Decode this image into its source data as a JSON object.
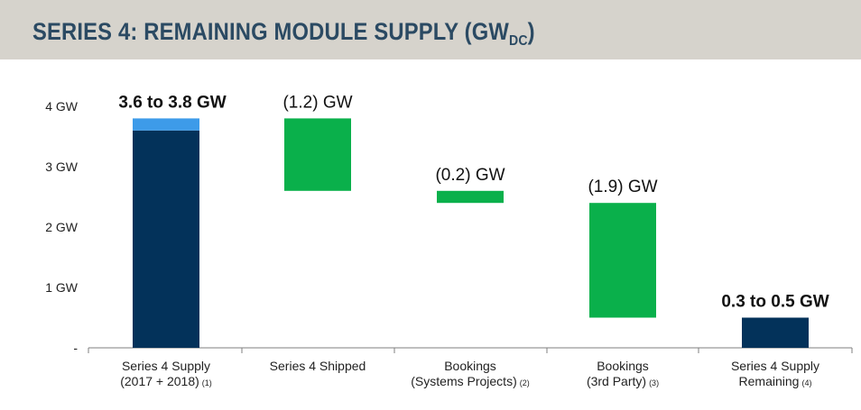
{
  "header": {
    "title_main": "SERIES 4: REMAINING MODULE SUPPLY (GW",
    "title_sub": "DC",
    "title_end": ")"
  },
  "colors": {
    "header_bg": "#d6d3cc",
    "title": "#2b4a63",
    "navy": "#03325a",
    "light_blue": "#3d9be9",
    "green": "#0ab04b"
  },
  "chart_data": {
    "type": "bar",
    "subtype": "waterfall",
    "title": "SERIES 4: REMAINING MODULE SUPPLY (GWDC)",
    "xlabel": "",
    "ylabel": "",
    "ylim": [
      0,
      4
    ],
    "y_ticks": [
      {
        "value": 0,
        "label": "-"
      },
      {
        "value": 1,
        "label": "1 GW"
      },
      {
        "value": 2,
        "label": "2 GW"
      },
      {
        "value": 3,
        "label": "3 GW"
      },
      {
        "value": 4,
        "label": "4 GW"
      }
    ],
    "grid": false,
    "categories": [
      {
        "lines": [
          "Series 4 Supply",
          "(2017 + 2018)"
        ],
        "note": "(1)"
      },
      {
        "lines": [
          "Series 4 Shipped"
        ],
        "note": ""
      },
      {
        "lines": [
          "Bookings",
          "(Systems Projects)"
        ],
        "note": "(2)"
      },
      {
        "lines": [
          "Bookings",
          "(3rd Party)"
        ],
        "note": "(3)"
      },
      {
        "lines": [
          "Series 4 Supply",
          "Remaining"
        ],
        "note": "(4)"
      }
    ],
    "bars": [
      {
        "segments": [
          {
            "from": 0,
            "to": 3.6,
            "color": "navy"
          },
          {
            "from": 3.6,
            "to": 3.8,
            "color": "light_blue"
          }
        ],
        "label": "3.6 to 3.8 GW",
        "label_bold": true
      },
      {
        "segments": [
          {
            "from": 2.6,
            "to": 3.8,
            "color": "green"
          }
        ],
        "label": "(1.2) GW",
        "label_bold": false
      },
      {
        "segments": [
          {
            "from": 2.4,
            "to": 2.6,
            "color": "green"
          }
        ],
        "label": "(0.2) GW",
        "label_bold": false
      },
      {
        "segments": [
          {
            "from": 0.5,
            "to": 2.4,
            "color": "green"
          }
        ],
        "label": "(1.9) GW",
        "label_bold": false
      },
      {
        "segments": [
          {
            "from": 0,
            "to": 0.5,
            "color": "navy"
          }
        ],
        "label": "0.3 to 0.5 GW",
        "label_bold": true
      }
    ]
  }
}
